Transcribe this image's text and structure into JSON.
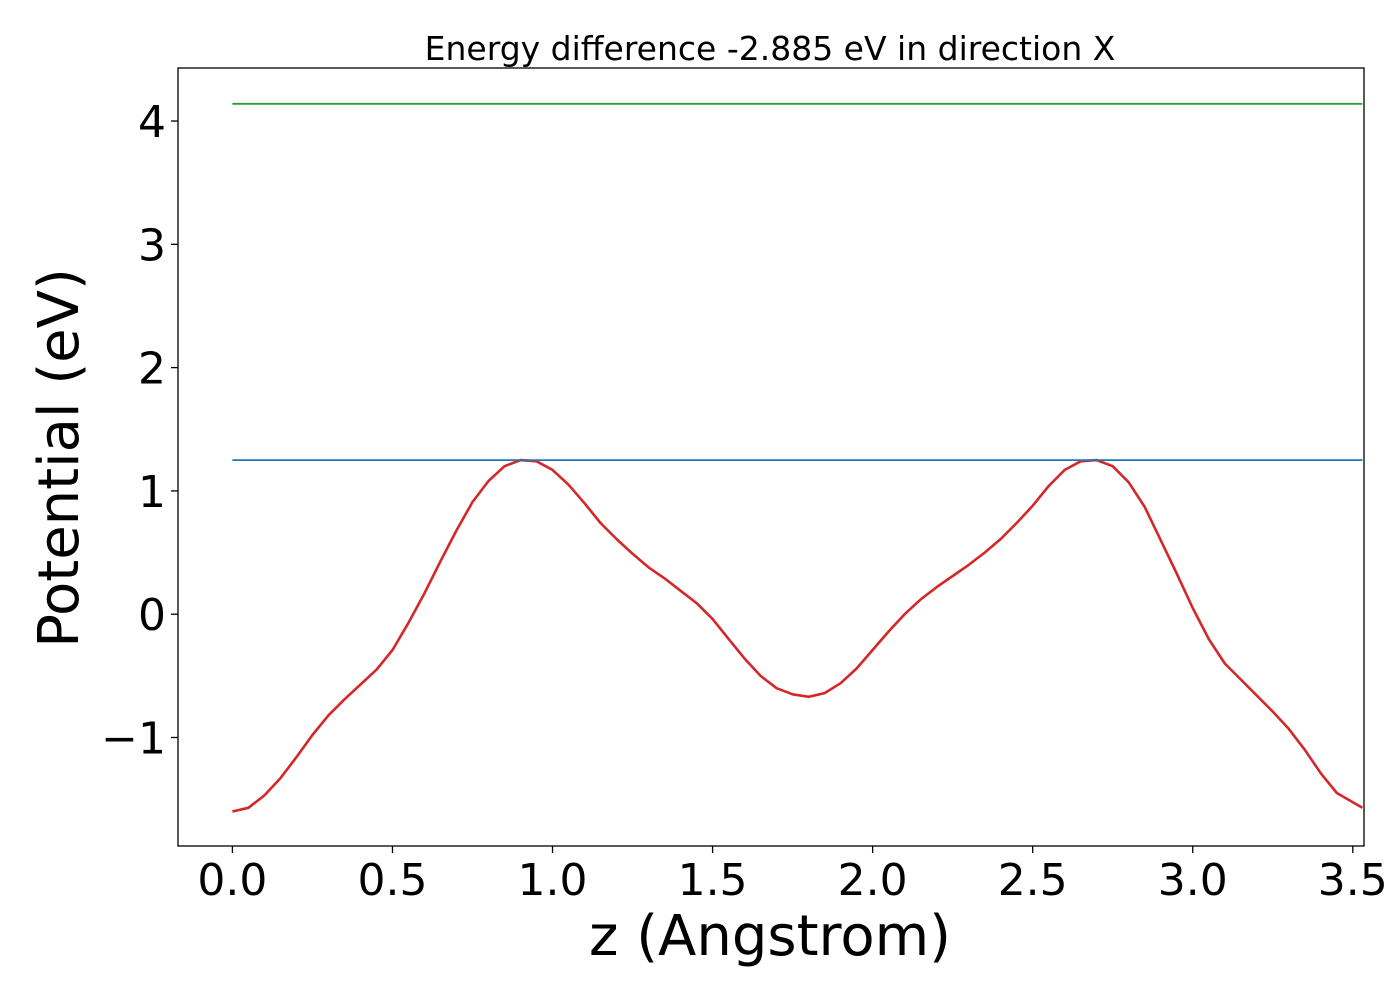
{
  "chart_data": {
    "type": "line",
    "title": "Energy difference -2.885 eV in direction X",
    "xlabel": "z (Angstrom)",
    "ylabel": "Potential (eV)",
    "xlim": [
      -0.17,
      3.535
    ],
    "ylim": [
      -1.88,
      4.43
    ],
    "xticks": [
      0.0,
      0.5,
      1.0,
      1.5,
      2.0,
      2.5,
      3.0,
      3.5
    ],
    "xtick_labels": [
      "0.0",
      "0.5",
      "1.0",
      "1.5",
      "2.0",
      "2.5",
      "3.0",
      "3.5"
    ],
    "yticks": [
      -1,
      0,
      1,
      2,
      3,
      4
    ],
    "ytick_labels": [
      "−1",
      "0",
      "1",
      "2",
      "3",
      "4"
    ],
    "grid": false,
    "legend": "none",
    "series": [
      {
        "color": "#d62728",
        "x": [
          0.0,
          0.05,
          0.1,
          0.15,
          0.2,
          0.25,
          0.3,
          0.35,
          0.4,
          0.45,
          0.5,
          0.55,
          0.6,
          0.65,
          0.7,
          0.75,
          0.8,
          0.85,
          0.9,
          0.95,
          1.0,
          1.05,
          1.1,
          1.15,
          1.2,
          1.25,
          1.3,
          1.35,
          1.4,
          1.45,
          1.5,
          1.55,
          1.6,
          1.65,
          1.7,
          1.75,
          1.8,
          1.85,
          1.9,
          1.95,
          2.0,
          2.05,
          2.1,
          2.15,
          2.2,
          2.25,
          2.3,
          2.35,
          2.4,
          2.45,
          2.5,
          2.55,
          2.6,
          2.65,
          2.7,
          2.75,
          2.8,
          2.85,
          2.9,
          2.95,
          3.0,
          3.05,
          3.1,
          3.15,
          3.2,
          3.25,
          3.3,
          3.35,
          3.4,
          3.45,
          3.53
        ],
        "y": [
          -1.6,
          -1.57,
          -1.47,
          -1.33,
          -1.16,
          -0.98,
          -0.82,
          -0.69,
          -0.57,
          -0.45,
          -0.29,
          -0.07,
          0.17,
          0.43,
          0.68,
          0.91,
          1.08,
          1.2,
          1.25,
          1.24,
          1.17,
          1.05,
          0.9,
          0.74,
          0.61,
          0.49,
          0.38,
          0.29,
          0.19,
          0.09,
          -0.04,
          -0.2,
          -0.36,
          -0.5,
          -0.6,
          -0.65,
          -0.67,
          -0.64,
          -0.56,
          -0.44,
          -0.29,
          -0.14,
          0.0,
          0.12,
          0.22,
          0.31,
          0.4,
          0.5,
          0.61,
          0.74,
          0.88,
          1.04,
          1.17,
          1.24,
          1.25,
          1.2,
          1.07,
          0.87,
          0.6,
          0.33,
          0.05,
          -0.2,
          -0.4,
          -0.53,
          -0.66,
          -0.79,
          -0.93,
          -1.1,
          -1.29,
          -1.45,
          -1.57
        ]
      },
      {
        "color": "#1f77b4",
        "x": [
          0.0,
          3.53
        ],
        "y": [
          1.25,
          1.25
        ]
      },
      {
        "color": "#2ca02c",
        "x": [
          0.0,
          3.53
        ],
        "y": [
          4.14,
          4.14
        ]
      }
    ]
  }
}
